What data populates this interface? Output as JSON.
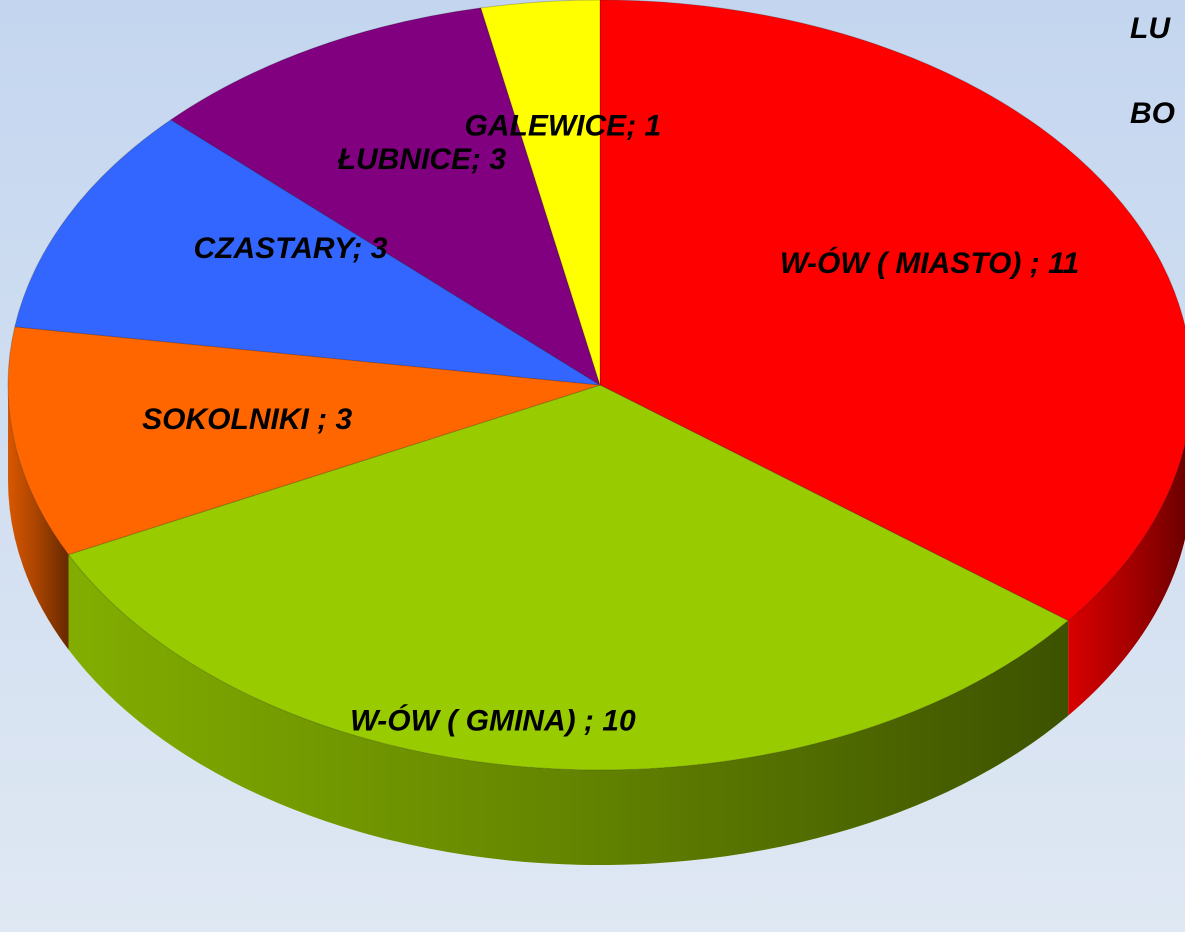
{
  "chart_data": {
    "type": "pie",
    "categories": [
      "W-ÓW ( MIASTO)",
      "W-ÓW ( GMINA)",
      "SOKOLNIKI",
      "CZASTARY",
      "ŁUBNICE",
      "GALEWICE"
    ],
    "values": [
      11,
      10,
      3,
      3,
      3,
      1
    ],
    "value_labels": [
      "W-ÓW ( MIASTO) ; 11",
      "W-ÓW ( GMINA) ; 10",
      "SOKOLNIKI ; 3",
      "CZASTARY; 3",
      "ŁUBNICE; 3",
      "GALEWICE; 1"
    ],
    "colors": [
      "#ff0000",
      "#99cc00",
      "#ff6600",
      "#3366ff",
      "#800080",
      "#ffff00"
    ],
    "annotations": [
      "LU",
      "BO"
    ]
  }
}
